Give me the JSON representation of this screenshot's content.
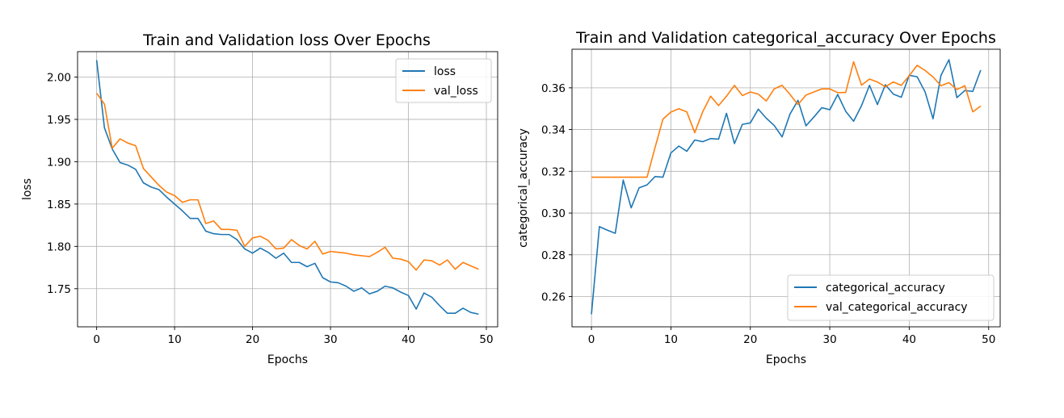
{
  "chart_data": [
    {
      "type": "line",
      "title": "Train and Validation loss Over Epochs",
      "xlabel": "Epochs",
      "ylabel": "loss",
      "xlim": [
        -2.45,
        51.45
      ],
      "ylim": [
        1.705,
        2.03
      ],
      "xticks": [
        0,
        10,
        20,
        30,
        40,
        50
      ],
      "xtick_labels": [
        "0",
        "10",
        "20",
        "30",
        "40",
        "50"
      ],
      "yticks": [
        1.75,
        1.8,
        1.85,
        1.9,
        1.95,
        2.0
      ],
      "ytick_labels": [
        "1.75",
        "1.80",
        "1.85",
        "1.90",
        "1.95",
        "2.00"
      ],
      "grid": true,
      "legend_position": "upper right",
      "series": [
        {
          "name": "loss",
          "color": "#1f77b4",
          "values": [
            2.02,
            1.94,
            1.915,
            1.899,
            1.896,
            1.891,
            1.875,
            1.87,
            1.867,
            1.858,
            1.85,
            1.842,
            1.833,
            1.833,
            1.818,
            1.815,
            1.814,
            1.814,
            1.808,
            1.797,
            1.792,
            1.798,
            1.793,
            1.786,
            1.792,
            1.781,
            1.781,
            1.776,
            1.78,
            1.763,
            1.758,
            1.757,
            1.753,
            1.747,
            1.751,
            1.744,
            1.747,
            1.753,
            1.751,
            1.746,
            1.742,
            1.726,
            1.745,
            1.74,
            1.73,
            1.721,
            1.721,
            1.727,
            1.722,
            1.72
          ]
        },
        {
          "name": "val_loss",
          "color": "#ff7f0e",
          "values": [
            1.981,
            1.968,
            1.916,
            1.927,
            1.922,
            1.919,
            1.892,
            1.882,
            1.872,
            1.864,
            1.86,
            1.852,
            1.855,
            1.855,
            1.827,
            1.83,
            1.82,
            1.82,
            1.819,
            1.8,
            1.81,
            1.812,
            1.807,
            1.797,
            1.798,
            1.808,
            1.801,
            1.797,
            1.806,
            1.791,
            1.794,
            1.793,
            1.792,
            1.79,
            1.789,
            1.788,
            1.793,
            1.799,
            1.786,
            1.785,
            1.782,
            1.772,
            1.784,
            1.783,
            1.778,
            1.784,
            1.773,
            1.781,
            1.777,
            1.773
          ]
        }
      ]
    },
    {
      "type": "line",
      "title": "Train and Validation categorical_accuracy Over Epochs",
      "xlabel": "Epochs",
      "ylabel": "categorical_accuracy",
      "xlim": [
        -2.45,
        51.45
      ],
      "ylim": [
        0.2455,
        0.3785
      ],
      "xticks": [
        0,
        10,
        20,
        30,
        40,
        50
      ],
      "xtick_labels": [
        "0",
        "10",
        "20",
        "30",
        "40",
        "50"
      ],
      "yticks": [
        0.26,
        0.28,
        0.3,
        0.32,
        0.34,
        0.36
      ],
      "ytick_labels": [
        "0.26",
        "0.28",
        "0.30",
        "0.32",
        "0.34",
        "0.36"
      ],
      "grid": true,
      "legend_position": "lower right",
      "series": [
        {
          "name": "categorical_accuracy",
          "color": "#1f77b4",
          "values": [
            0.2515,
            0.2935,
            0.2918,
            0.2903,
            0.3158,
            0.3025,
            0.3121,
            0.3135,
            0.3175,
            0.3172,
            0.3288,
            0.3321,
            0.3296,
            0.335,
            0.3342,
            0.3357,
            0.3354,
            0.3478,
            0.3333,
            0.3425,
            0.3432,
            0.3498,
            0.3455,
            0.342,
            0.3365,
            0.3475,
            0.354,
            0.3418,
            0.346,
            0.3505,
            0.3495,
            0.3568,
            0.3488,
            0.344,
            0.3515,
            0.3612,
            0.352,
            0.3615,
            0.357,
            0.3555,
            0.366,
            0.3653,
            0.358,
            0.3452,
            0.366,
            0.3735,
            0.3553,
            0.3587,
            0.3583,
            0.3685
          ]
        },
        {
          "name": "val_categorical_accuracy",
          "color": "#ff7f0e",
          "values": [
            0.3172,
            0.3172,
            0.3172,
            0.3172,
            0.3172,
            0.3172,
            0.3172,
            0.3172,
            0.3313,
            0.345,
            0.3484,
            0.35,
            0.3485,
            0.3385,
            0.3485,
            0.356,
            0.3515,
            0.356,
            0.3612,
            0.3563,
            0.358,
            0.357,
            0.3537,
            0.3595,
            0.3612,
            0.3568,
            0.352,
            0.3565,
            0.358,
            0.3595,
            0.3595,
            0.3577,
            0.3578,
            0.3725,
            0.3613,
            0.3642,
            0.3628,
            0.3605,
            0.3628,
            0.3612,
            0.3658,
            0.3708,
            0.3683,
            0.3652,
            0.361,
            0.3625,
            0.3592,
            0.361,
            0.3485,
            0.3513
          ]
        }
      ]
    }
  ]
}
